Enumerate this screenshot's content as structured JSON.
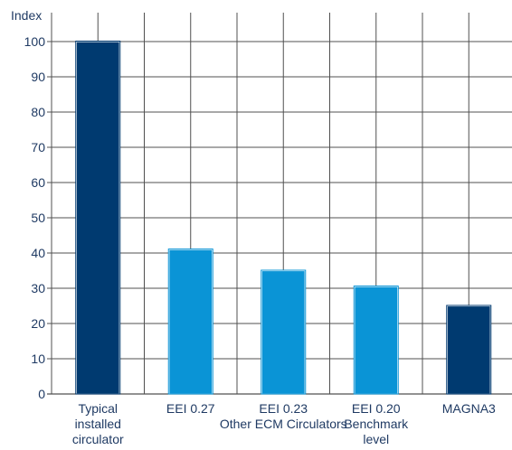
{
  "chart_data": {
    "type": "bar",
    "ylabel": "Index",
    "ylim": [
      0,
      100
    ],
    "yticks": [
      0,
      10,
      20,
      30,
      40,
      50,
      60,
      70,
      80,
      90,
      100
    ],
    "grid": true,
    "categories": [
      [
        "Typical",
        "installed",
        "circulator"
      ],
      [
        "EEI 0.27"
      ],
      [
        "EEI 0.23"
      ],
      [
        "EEI 0.20",
        "Benchmark",
        "level"
      ],
      [
        "MAGNA3"
      ]
    ],
    "values": [
      100,
      41,
      35,
      30.5,
      25
    ],
    "group_label": "Other ECM Circulators",
    "colors": {
      "dark": "#003a70",
      "light": "#0a94d6",
      "grid": "#505050",
      "text": "#1f3a63"
    },
    "bar_colors": [
      "dark",
      "light",
      "light",
      "light",
      "dark"
    ]
  }
}
